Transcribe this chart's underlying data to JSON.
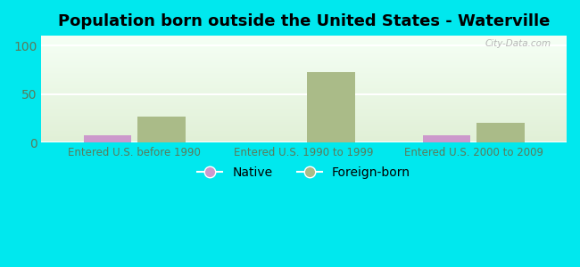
{
  "title": "Population born outside the United States - Waterville",
  "categories": [
    "Entered U.S. before 1990",
    "Entered U.S. 1990 to 1999",
    "Entered U.S. 2000 to 2009"
  ],
  "native_values": [
    8,
    0,
    8
  ],
  "foreign_values": [
    27,
    73,
    20
  ],
  "native_color": "#cc99cc",
  "foreign_color": "#aabb88",
  "background_color": "#00e8ee",
  "plot_bg_top": "#e8f5e0",
  "plot_bg_bottom": "#f5fff5",
  "ylim": [
    0,
    110
  ],
  "yticks": [
    0,
    50,
    100
  ],
  "bar_width": 0.28,
  "title_fontsize": 13,
  "tick_label_color": "#5a7a5a",
  "watermark": "City-Data.com",
  "legend_labels": [
    "Native",
    "Foreign-born"
  ]
}
